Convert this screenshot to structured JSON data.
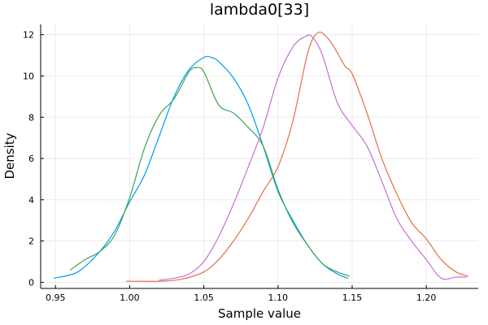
{
  "chart_data": {
    "type": "line",
    "title": "lambda0[33]",
    "xlabel": "Sample value",
    "ylabel": "Density",
    "xlim": [
      0.94,
      1.235
    ],
    "ylim": [
      -0.3,
      12.5
    ],
    "grid": true,
    "legend": "none",
    "x_ticks": [
      0.95,
      1.0,
      1.05,
      1.1,
      1.15,
      1.2
    ],
    "x_tick_labels": [
      "0.95",
      "1.00",
      "1.05",
      "1.10",
      "1.15",
      "1.20"
    ],
    "y_ticks": [
      0,
      2,
      4,
      6,
      8,
      10,
      12
    ],
    "y_tick_labels": [
      "0",
      "2",
      "4",
      "6",
      "8",
      "10",
      "12"
    ],
    "series": [
      {
        "color": "#009af9",
        "x": [
          0.949,
          0.965,
          0.98,
          0.99,
          1.0,
          1.01,
          1.02,
          1.03,
          1.04,
          1.05,
          1.055,
          1.06,
          1.07,
          1.08,
          1.09,
          1.1,
          1.11,
          1.12,
          1.13,
          1.14,
          1.147
        ],
        "y": [
          0.2,
          0.5,
          1.5,
          2.5,
          3.9,
          5.2,
          7.1,
          9.0,
          10.3,
          10.9,
          10.9,
          10.7,
          9.9,
          8.6,
          6.6,
          4.4,
          3.0,
          1.8,
          0.9,
          0.4,
          0.2
        ]
      },
      {
        "color": "#e26f46",
        "x": [
          0.998,
          1.02,
          1.035,
          1.05,
          1.06,
          1.07,
          1.08,
          1.09,
          1.1,
          1.11,
          1.12,
          1.127,
          1.135,
          1.145,
          1.15,
          1.16,
          1.17,
          1.18,
          1.19,
          1.2,
          1.21,
          1.22,
          1.228
        ],
        "y": [
          0.05,
          0.05,
          0.15,
          0.5,
          1.1,
          2.0,
          3.1,
          4.4,
          5.6,
          7.8,
          11.1,
          12.1,
          11.7,
          10.5,
          10.1,
          8.2,
          6.0,
          4.3,
          2.9,
          2.1,
          1.1,
          0.5,
          0.3
        ]
      },
      {
        "color": "#3da44d",
        "x": [
          0.96,
          0.97,
          0.98,
          0.99,
          1.0,
          1.01,
          1.02,
          1.03,
          1.04,
          1.045,
          1.05,
          1.06,
          1.07,
          1.08,
          1.09,
          1.1,
          1.11,
          1.12,
          1.13,
          1.14,
          1.148
        ],
        "y": [
          0.6,
          1.1,
          1.5,
          2.3,
          4.1,
          6.5,
          8.1,
          8.9,
          10.2,
          10.4,
          10.2,
          8.6,
          8.2,
          7.5,
          6.6,
          4.5,
          2.9,
          1.8,
          0.9,
          0.5,
          0.3
        ]
      },
      {
        "color": "#c271d2",
        "x": [
          1.02,
          1.03,
          1.04,
          1.05,
          1.06,
          1.07,
          1.08,
          1.09,
          1.1,
          1.11,
          1.118,
          1.123,
          1.13,
          1.14,
          1.15,
          1.16,
          1.17,
          1.18,
          1.19,
          1.2,
          1.21,
          1.22,
          1.227
        ],
        "y": [
          0.1,
          0.2,
          0.4,
          1.0,
          2.2,
          3.8,
          5.6,
          7.5,
          9.9,
          11.4,
          11.9,
          11.9,
          11.0,
          8.7,
          7.6,
          6.6,
          4.9,
          3.1,
          2.0,
          1.1,
          0.2,
          0.25,
          0.25
        ]
      }
    ]
  }
}
